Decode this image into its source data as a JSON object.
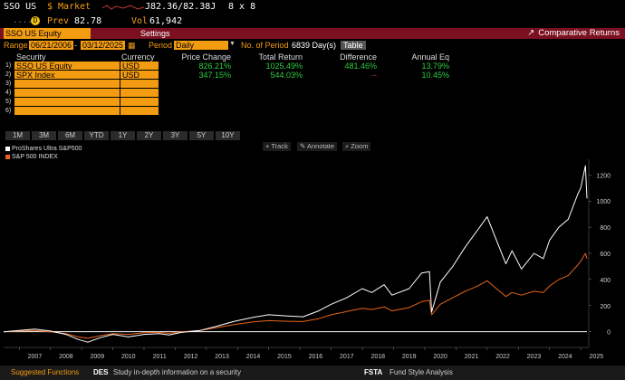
{
  "quote": {
    "ticker": "SSO US",
    "market_label": "$ Market",
    "price_range": "J82.36/82.38J",
    "size": "8 x 8",
    "dots": "....",
    "tag": "D",
    "prev_label": "Prev",
    "prev_value": "82.78",
    "vol_label": "Vol",
    "vol_value": "61,942"
  },
  "title_bar": {
    "security": "SSO US Equity",
    "settings": "Settings",
    "comparative_returns": "Comparative Returns",
    "export_icon": "export-icon"
  },
  "range": {
    "label": "Range",
    "start": "06/21/2006",
    "dash": "-",
    "end": "03/12/2025",
    "period_label": "Period",
    "period_value": "Daily",
    "num_period_label": "No. of Period",
    "num_period_value": "6839 Day(s)",
    "table_button": "Table"
  },
  "table": {
    "headers": [
      "Security",
      "Currency",
      "Price Change",
      "Total Return",
      "Difference",
      "Annual Eq"
    ],
    "rows": [
      {
        "num": "1)",
        "security": "SSO US Equity",
        "currency": "USD",
        "price_change": "826.21%",
        "total_return": "1025.49%",
        "difference": "481.46%",
        "annual_eq": "13.79%"
      },
      {
        "num": "2)",
        "security": "SPX Index",
        "currency": "USD",
        "price_change": "347.15%",
        "total_return": "544.03%",
        "difference": "--",
        "annual_eq": "10.45%"
      },
      {
        "num": "3)",
        "security": "",
        "currency": "",
        "price_change": "",
        "total_return": "",
        "difference": "",
        "annual_eq": ""
      },
      {
        "num": "4)",
        "security": "",
        "currency": "",
        "price_change": "",
        "total_return": "",
        "difference": "",
        "annual_eq": ""
      },
      {
        "num": "5)",
        "security": "",
        "currency": "",
        "price_change": "",
        "total_return": "",
        "difference": "",
        "annual_eq": ""
      },
      {
        "num": "6)",
        "security": "",
        "currency": "",
        "price_change": "",
        "total_return": "",
        "difference": "",
        "annual_eq": ""
      }
    ]
  },
  "periods": [
    "1M",
    "3M",
    "6M",
    "YTD",
    "1Y",
    "2Y",
    "3Y",
    "5Y",
    "10Y"
  ],
  "chart_tools": [
    "Track",
    "Annotate",
    "Zoom"
  ],
  "legend": [
    {
      "name": "ProShares Ultra S&P500",
      "color": "#ffffff"
    },
    {
      "name": "S&P 500 INDEX",
      "color": "#e8641a"
    }
  ],
  "footer": {
    "suggested": "Suggested Functions",
    "des_code": "DES",
    "des_text": "Study in-depth information on a security",
    "fsta_code": "FSTA",
    "fsta_text": "Fund Style Analysis"
  },
  "chart_data": {
    "type": "line",
    "x": [
      2006.5,
      2007.0,
      2007.5,
      2008.0,
      2008.5,
      2008.9,
      2009.2,
      2009.6,
      2010.0,
      2010.5,
      2011.0,
      2011.5,
      2011.8,
      2012.2,
      2012.8,
      2013.3,
      2013.9,
      2014.5,
      2015.0,
      2015.6,
      2016.1,
      2016.6,
      2017.0,
      2017.5,
      2018.0,
      2018.3,
      2018.7,
      2018.95,
      2019.5,
      2019.9,
      2020.15,
      2020.22,
      2020.5,
      2020.9,
      2021.3,
      2021.7,
      2022.0,
      2022.3,
      2022.6,
      2022.8,
      2023.1,
      2023.5,
      2023.8,
      2024.0,
      2024.3,
      2024.6,
      2024.9,
      2025.0,
      2025.15,
      2025.2
    ],
    "series": [
      {
        "name": "ProShares Ultra S&P500",
        "values": [
          0,
          10,
          20,
          5,
          -20,
          -60,
          -80,
          -45,
          -20,
          -40,
          -20,
          -15,
          -25,
          -5,
          10,
          40,
          80,
          110,
          130,
          120,
          115,
          160,
          210,
          260,
          330,
          300,
          360,
          280,
          330,
          450,
          460,
          150,
          380,
          500,
          650,
          780,
          880,
          700,
          520,
          620,
          480,
          600,
          560,
          700,
          800,
          860,
          1050,
          1100,
          1270,
          1020
        ]
      },
      {
        "name": "S&P 500 INDEX",
        "values": [
          0,
          5,
          10,
          0,
          -15,
          -40,
          -50,
          -30,
          -15,
          -20,
          -8,
          -5,
          -12,
          0,
          10,
          30,
          55,
          75,
          85,
          80,
          78,
          100,
          130,
          155,
          180,
          170,
          190,
          160,
          185,
          230,
          240,
          130,
          210,
          260,
          310,
          350,
          390,
          330,
          270,
          300,
          280,
          310,
          300,
          350,
          400,
          430,
          510,
          540,
          600,
          560
        ]
      }
    ],
    "x_ticks": [
      "2007",
      "2008",
      "2009",
      "2010",
      "2011",
      "2012",
      "2013",
      "2014",
      "2015",
      "2016",
      "2017",
      "2018",
      "2019",
      "2020",
      "2021",
      "2022",
      "2023",
      "2024",
      "2025"
    ],
    "y_ticks": [
      0,
      200,
      400,
      600,
      800,
      1000,
      1200
    ],
    "xlim": [
      2006.5,
      2025.2
    ],
    "ylim": [
      -120,
      1320
    ],
    "grid": false,
    "legend_placement": "top-left"
  }
}
